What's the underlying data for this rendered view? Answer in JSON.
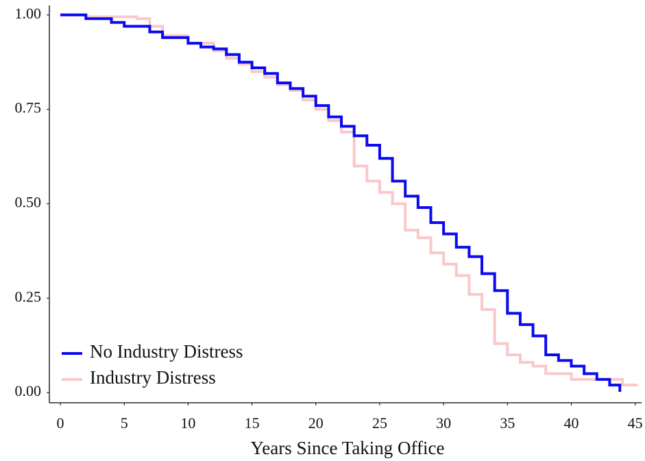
{
  "chart_data": {
    "type": "step",
    "xlabel": "Years Since Taking Office",
    "xlim": [
      -0.86,
      45.5
    ],
    "ylim": [
      -0.027,
      1.025
    ],
    "xticks": [
      0,
      5,
      10,
      15,
      20,
      25,
      30,
      35,
      40,
      45
    ],
    "yticks": [
      {
        "value": 0,
        "label": "0.00"
      },
      {
        "value": 0.25,
        "label": "0.25"
      },
      {
        "value": 0.5,
        "label": "0.50"
      },
      {
        "value": 0.75,
        "label": "0.75"
      },
      {
        "value": 1,
        "label": "1.00"
      }
    ],
    "grid": false,
    "legend": "lower left",
    "series": [
      {
        "name": "Industry Distress",
        "color": "#f9c8c8",
        "x": [
          0,
          2,
          6,
          7,
          8,
          10,
          12,
          13,
          14,
          15,
          16,
          17,
          18,
          19,
          20,
          21,
          22,
          23,
          24,
          25,
          26,
          27,
          28,
          29,
          30,
          31,
          32,
          33,
          34,
          35,
          36,
          37,
          38,
          40,
          44,
          45.2
        ],
        "values": [
          1.0,
          0.995,
          0.99,
          0.97,
          0.945,
          0.925,
          0.905,
          0.885,
          0.87,
          0.85,
          0.835,
          0.815,
          0.8,
          0.775,
          0.75,
          0.72,
          0.69,
          0.6,
          0.56,
          0.53,
          0.5,
          0.43,
          0.41,
          0.37,
          0.34,
          0.31,
          0.26,
          0.22,
          0.13,
          0.1,
          0.08,
          0.07,
          0.05,
          0.035,
          0.02,
          0.02
        ]
      },
      {
        "name": "No Industry Distress",
        "color": "#0a0af0",
        "x": [
          0,
          2,
          4,
          5,
          7,
          8,
          10,
          11,
          12,
          13,
          14,
          15,
          16,
          17,
          18,
          19,
          20,
          21,
          22,
          23,
          24,
          25,
          26,
          27,
          28,
          29,
          30,
          31,
          32,
          33,
          34,
          35,
          36,
          37,
          38,
          39,
          40,
          41,
          42,
          43,
          43.8
        ],
        "values": [
          1.0,
          0.99,
          0.98,
          0.97,
          0.955,
          0.94,
          0.925,
          0.915,
          0.91,
          0.895,
          0.875,
          0.86,
          0.845,
          0.82,
          0.805,
          0.785,
          0.76,
          0.73,
          0.705,
          0.68,
          0.655,
          0.62,
          0.56,
          0.52,
          0.49,
          0.45,
          0.42,
          0.385,
          0.36,
          0.315,
          0.27,
          0.21,
          0.18,
          0.15,
          0.1,
          0.085,
          0.07,
          0.05,
          0.035,
          0.02,
          0.002
        ]
      }
    ]
  }
}
